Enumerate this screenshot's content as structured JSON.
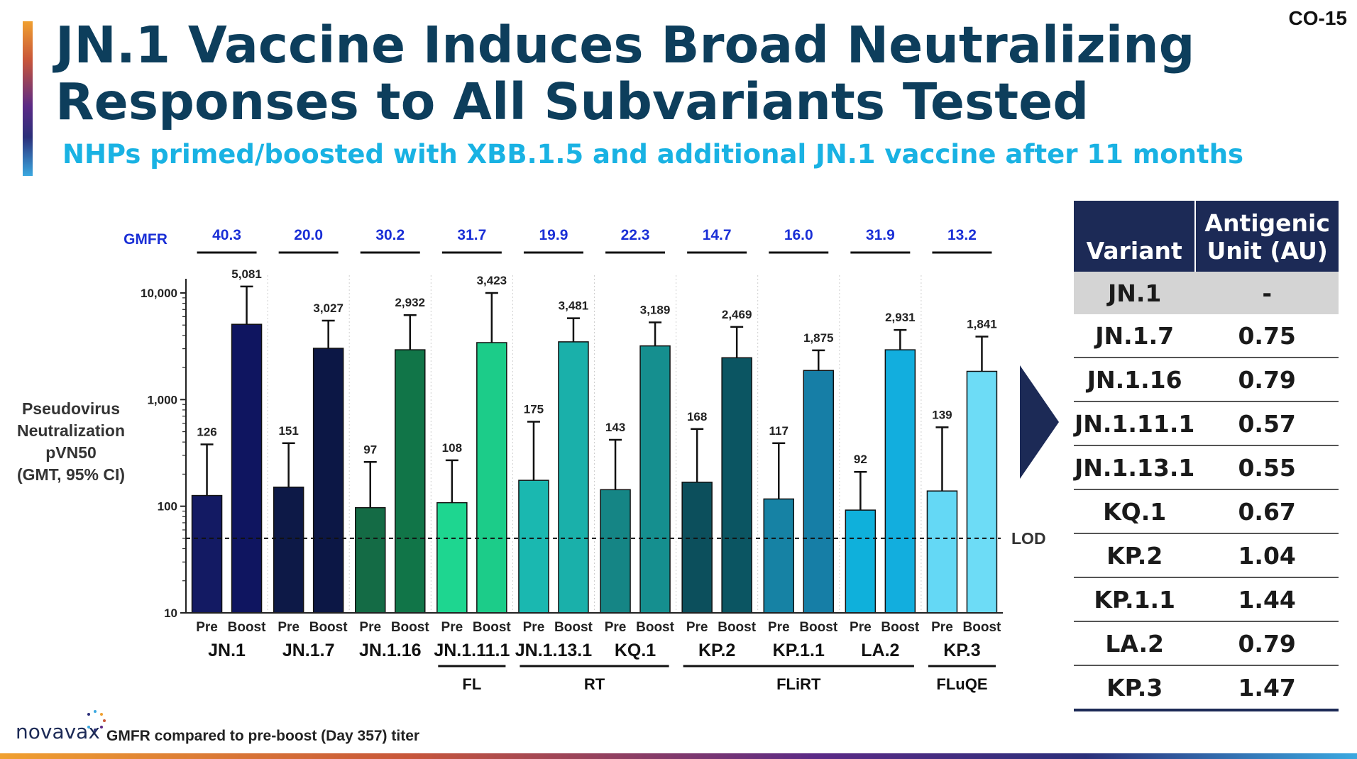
{
  "slide": {
    "id": "CO-15",
    "title_line1": "JN.1 Vaccine Induces Broad Neutralizing",
    "title_line2": "Responses to All Subvariants Tested",
    "subtitle": "NHPs primed/boosted with XBB.1.5 and additional JN.1 vaccine after 11 months"
  },
  "chart_data": {
    "type": "bar",
    "title": "",
    "ylabel_lines": [
      "Pseudovirus",
      "Neutralization",
      "pVN50",
      "(GMT, 95% CI)"
    ],
    "y_scale": "log",
    "ylim": [
      10,
      10000
    ],
    "y_ticks": [
      10,
      100,
      1000,
      10000
    ],
    "y_tick_labels": [
      "10",
      "100",
      "1,000",
      "10,000"
    ],
    "lod_label": "LOD",
    "lod_value": 50,
    "gmfr_label": "GMFR",
    "pre_label": "Pre",
    "boost_label": "Boost",
    "groups": [
      {
        "variant": "JN.1",
        "gmfr": "40.3",
        "pre": 126,
        "pre_label": "126",
        "pre_upper": 380,
        "boost": 5081,
        "boost_label": "5,081",
        "boost_upper": 11500,
        "pre_color": "#131a63",
        "boost_color": "#0f1560"
      },
      {
        "variant": "JN.1.7",
        "gmfr": "20.0",
        "pre": 151,
        "pre_label": "151",
        "pre_upper": 390,
        "boost": 3027,
        "boost_label": "3,027",
        "boost_upper": 5500,
        "pre_color": "#0d1947",
        "boost_color": "#0c1745"
      },
      {
        "variant": "JN.1.16",
        "gmfr": "30.2",
        "pre": 97,
        "pre_label": "97",
        "pre_upper": 260,
        "boost": 2932,
        "boost_label": "2,932",
        "boost_upper": 6200,
        "pre_color": "#146b45",
        "boost_color": "#117548"
      },
      {
        "variant": "JN.1.11.1",
        "gmfr": "31.7",
        "pre": 108,
        "pre_label": "108",
        "pre_upper": 270,
        "boost": 3423,
        "boost_label": "3,423",
        "boost_upper": 10000,
        "pre_color": "#1ed690",
        "boost_color": "#1ccc89"
      },
      {
        "variant": "JN.1.13.1",
        "gmfr": "19.9",
        "pre": 175,
        "pre_label": "175",
        "pre_upper": 620,
        "boost": 3481,
        "boost_label": "3,481",
        "boost_upper": 5800,
        "pre_color": "#1ab8b0",
        "boost_color": "#1ab0aa"
      },
      {
        "variant": "KQ.1",
        "gmfr": "22.3",
        "pre": 143,
        "pre_label": "143",
        "pre_upper": 420,
        "boost": 3189,
        "boost_label": "3,189",
        "boost_upper": 5300,
        "pre_color": "#158585",
        "boost_color": "#158f8f"
      },
      {
        "variant": "KP.2",
        "gmfr": "14.7",
        "pre": 168,
        "pre_label": "168",
        "pre_upper": 530,
        "boost": 2469,
        "boost_label": "2,469",
        "boost_upper": 4800,
        "pre_color": "#0c4f5c",
        "boost_color": "#0b5562"
      },
      {
        "variant": "KP.1.1",
        "gmfr": "16.0",
        "pre": 117,
        "pre_label": "117",
        "pre_upper": 390,
        "boost": 1875,
        "boost_label": "1,875",
        "boost_upper": 2900,
        "pre_color": "#1682a4",
        "boost_color": "#167ea6"
      },
      {
        "variant": "LA.2",
        "gmfr": "31.9",
        "pre": 92,
        "pre_label": "92",
        "pre_upper": 210,
        "boost": 2931,
        "boost_label": "2,931",
        "boost_upper": 4500,
        "pre_color": "#0fb0db",
        "boost_color": "#12aede"
      },
      {
        "variant": "KP.3",
        "gmfr": "13.2",
        "pre": 139,
        "pre_label": "139",
        "pre_upper": 550,
        "boost": 1841,
        "boost_label": "1,841",
        "boost_upper": 3900,
        "pre_color": "#64d8f5",
        "boost_color": "#6ddcf6"
      }
    ],
    "families": [
      {
        "label": "FL",
        "from": 3,
        "to": 3
      },
      {
        "label": "RT",
        "from": 4,
        "to": 5
      },
      {
        "label": "FLiRT",
        "from": 6,
        "to": 8
      },
      {
        "label": "FLuQE",
        "from": 9,
        "to": 9
      }
    ]
  },
  "au_table": {
    "header_variant": "Variant",
    "header_au_line1": "Antigenic",
    "header_au_line2": "Unit (AU)",
    "rows": [
      {
        "variant": "JN.1",
        "au": "-"
      },
      {
        "variant": "JN.1.7",
        "au": "0.75"
      },
      {
        "variant": "JN.1.16",
        "au": "0.79"
      },
      {
        "variant": "JN.1.11.1",
        "au": "0.57"
      },
      {
        "variant": "JN.1.13.1",
        "au": "0.55"
      },
      {
        "variant": "KQ.1",
        "au": "0.67"
      },
      {
        "variant": "KP.2",
        "au": "1.04"
      },
      {
        "variant": "KP.1.1",
        "au": "1.44"
      },
      {
        "variant": "LA.2",
        "au": "0.79"
      },
      {
        "variant": "KP.3",
        "au": "1.47"
      }
    ]
  },
  "footer": {
    "logo_text": "novavax",
    "footnote": "GMFR compared to pre-boost (Day 357) titer"
  },
  "colors": {
    "title": "#0d3e5c",
    "subtitle": "#19b2e3",
    "gmfr": "#1a2fd6",
    "table_header": "#1c2a56"
  }
}
